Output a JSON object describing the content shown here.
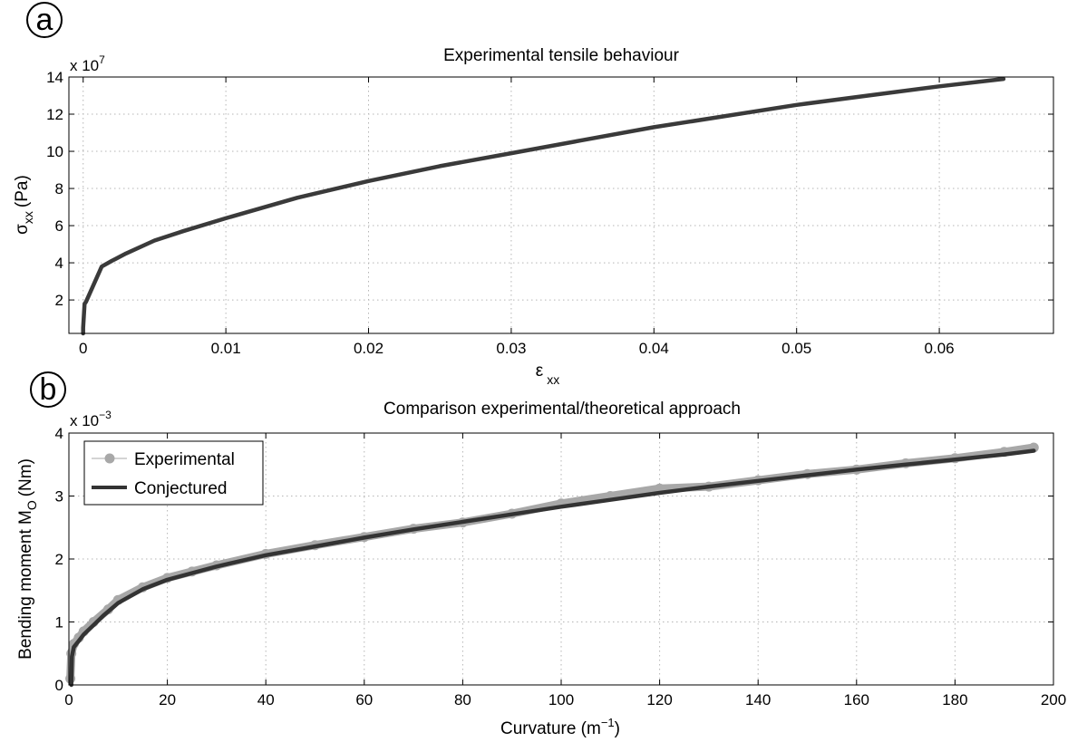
{
  "panels": {
    "a": {
      "letter": "a"
    },
    "b": {
      "letter": "b"
    }
  },
  "chart_data": [
    {
      "type": "line",
      "title": "Experimental tensile behaviour",
      "xlabel": "ε",
      "xlabel_sub": "xx",
      "ylabel": "σ",
      "ylabel_sub": "xx",
      "ylabel_unit": "(Pa)",
      "y_multiplier": "x 10",
      "y_multiplier_exp": "7",
      "xlim": [
        -0.001,
        0.068
      ],
      "ylim": [
        0.2,
        14
      ],
      "xticks": [
        0,
        0.01,
        0.02,
        0.03,
        0.04,
        0.05,
        0.06
      ],
      "xtick_labels": [
        "0",
        "0.01",
        "0.02",
        "0.03",
        "0.04",
        "0.05",
        "0.06"
      ],
      "yticks": [
        2,
        4,
        6,
        8,
        10,
        12,
        14
      ],
      "ytick_labels": [
        "2",
        "4",
        "6",
        "8",
        "10",
        "12",
        "14"
      ],
      "grid": true,
      "series": [
        {
          "color": "#3a3a3a",
          "x": [
            0,
            0,
            0.0001,
            0.0002,
            0.0013,
            0.002,
            0.003,
            0.005,
            0.007,
            0.01,
            0.015,
            0.02,
            0.025,
            0.03,
            0.035,
            0.04,
            0.045,
            0.05,
            0.055,
            0.06,
            0.0645
          ],
          "y": [
            0.0,
            0.5,
            1.8,
            1.9,
            3.8,
            4.1,
            4.5,
            5.2,
            5.7,
            6.4,
            7.5,
            8.4,
            9.2,
            9.9,
            10.6,
            11.3,
            11.9,
            12.5,
            13.0,
            13.5,
            13.9
          ]
        }
      ]
    },
    {
      "type": "line",
      "title": "Comparison experimental/theoretical approach",
      "xlabel": "Curvature (m",
      "xlabel_exp": "−1",
      "xlabel_close": ")",
      "ylabel": "Bending moment M",
      "ylabel_sub": "O",
      "ylabel_unit": "(Nm)",
      "y_multiplier": "x 10",
      "y_multiplier_exp": "−3",
      "xlim": [
        0,
        200
      ],
      "ylim": [
        0,
        4
      ],
      "xticks": [
        0,
        20,
        40,
        60,
        80,
        100,
        120,
        140,
        160,
        180,
        200
      ],
      "xtick_labels": [
        "0",
        "20",
        "40",
        "60",
        "80",
        "100",
        "120",
        "140",
        "160",
        "180",
        "200"
      ],
      "yticks": [
        0,
        1,
        2,
        3,
        4
      ],
      "ytick_labels": [
        "0",
        "1",
        "2",
        "3",
        "4"
      ],
      "grid": true,
      "legend_position": "top-left",
      "series": [
        {
          "name": "Experimental",
          "color": "#a8a8a8",
          "style": "markers",
          "x": [
            0.3,
            0.5,
            1,
            2,
            3,
            5,
            8,
            10,
            15,
            20,
            25,
            30,
            40,
            50,
            60,
            70,
            80,
            90,
            100,
            110,
            120,
            130,
            140,
            150,
            160,
            170,
            180,
            190,
            196
          ],
          "y": [
            0.1,
            0.5,
            0.65,
            0.75,
            0.85,
            1.0,
            1.2,
            1.35,
            1.55,
            1.7,
            1.8,
            1.9,
            2.08,
            2.22,
            2.35,
            2.48,
            2.58,
            2.72,
            2.88,
            3.0,
            3.12,
            3.15,
            3.25,
            3.35,
            3.42,
            3.52,
            3.6,
            3.7,
            3.77
          ]
        },
        {
          "name": "Conjectured",
          "color": "#333333",
          "style": "line",
          "x": [
            0.5,
            0.6,
            1,
            2,
            3,
            5,
            7,
            10,
            15,
            20,
            30,
            40,
            50,
            60,
            70,
            80,
            90,
            100,
            110,
            120,
            130,
            140,
            150,
            160,
            170,
            180,
            190,
            196
          ],
          "y": [
            0.0,
            0.45,
            0.6,
            0.7,
            0.8,
            0.95,
            1.1,
            1.3,
            1.52,
            1.67,
            1.88,
            2.06,
            2.2,
            2.34,
            2.47,
            2.59,
            2.71,
            2.83,
            2.94,
            3.05,
            3.15,
            3.24,
            3.33,
            3.42,
            3.5,
            3.58,
            3.66,
            3.72
          ]
        }
      ]
    }
  ]
}
